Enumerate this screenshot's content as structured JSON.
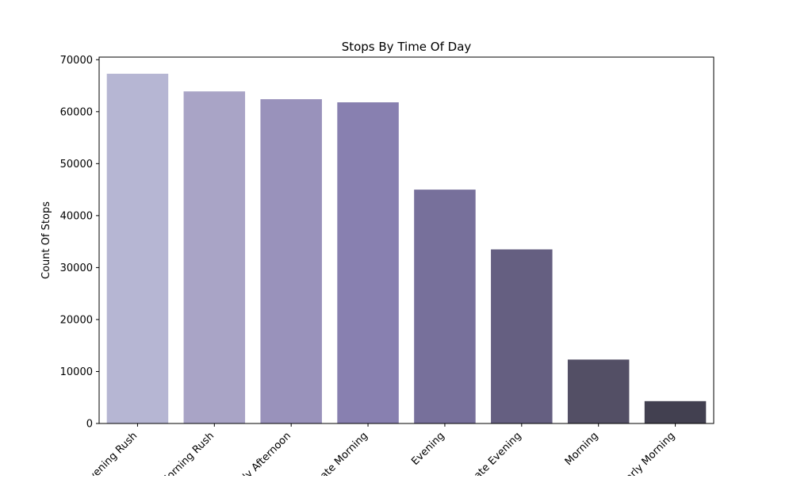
{
  "chart_data": {
    "type": "bar",
    "title": "Stops By Time Of Day",
    "xlabel": "",
    "ylabel": "Count Of Stops",
    "categories": [
      "Evening Rush",
      "Morning Rush",
      "Early Afternoon",
      "Late Morning",
      "Evening",
      "Late Evening",
      "Morning",
      "Early Morning"
    ],
    "values": [
      67300,
      63900,
      62400,
      61800,
      45000,
      33500,
      12300,
      4300
    ],
    "ylim": [
      0,
      70500
    ],
    "yticks": [
      0,
      10000,
      20000,
      30000,
      40000,
      50000,
      60000,
      70000
    ],
    "ytick_labels": [
      "0",
      "10000",
      "20000",
      "30000",
      "40000",
      "50000",
      "60000",
      "70000"
    ],
    "colors": [
      "#b6b6d3",
      "#a9a4c6",
      "#9992bb",
      "#8880b0",
      "#77709b",
      "#655f81",
      "#534f65",
      "#424050"
    ],
    "grid": false,
    "legend": "none"
  }
}
